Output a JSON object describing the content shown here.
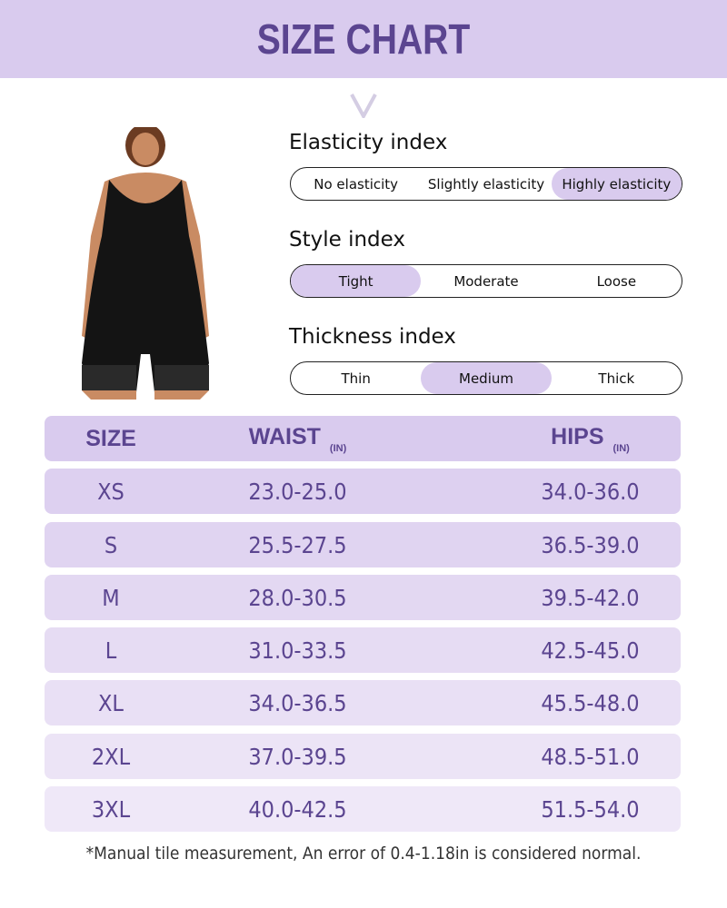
{
  "title": "SIZE CHART",
  "colors": {
    "banner": "#d9cbee",
    "accent_text": "#5b4590",
    "selected": "#d9cbee"
  },
  "indices": [
    {
      "title": "Elasticity index",
      "options": [
        "No elasticity",
        "Slightly elasticity",
        "Highly elasticity"
      ],
      "selected": 2
    },
    {
      "title": "Style index",
      "options": [
        "Tight",
        "Moderate",
        "Loose"
      ],
      "selected": 0
    },
    {
      "title": "Thickness index",
      "options": [
        "Thin",
        "Medium",
        "Thick"
      ],
      "selected": 1
    }
  ],
  "table": {
    "headers": {
      "size": "SIZE",
      "waist": "WAIST",
      "waist_unit": "(IN)",
      "hips": "HIPS",
      "hips_unit": "(IN)"
    },
    "rows": [
      {
        "size": "XS",
        "waist": "23.0-25.0",
        "hips": "34.0-36.0"
      },
      {
        "size": "S",
        "waist": "25.5-27.5",
        "hips": "36.5-39.0"
      },
      {
        "size": "M",
        "waist": "28.0-30.5",
        "hips": "39.5-42.0"
      },
      {
        "size": "L",
        "waist": "31.0-33.5",
        "hips": "42.5-45.0"
      },
      {
        "size": "XL",
        "waist": "34.0-36.5",
        "hips": "45.5-48.0"
      },
      {
        "size": "2XL",
        "waist": "37.0-39.5",
        "hips": "48.5-51.0"
      },
      {
        "size": "3XL",
        "waist": "40.0-42.5",
        "hips": "51.5-54.0"
      }
    ]
  },
  "note": "*Manual tile measurement, An error of 0.4-1.18in is considered normal."
}
